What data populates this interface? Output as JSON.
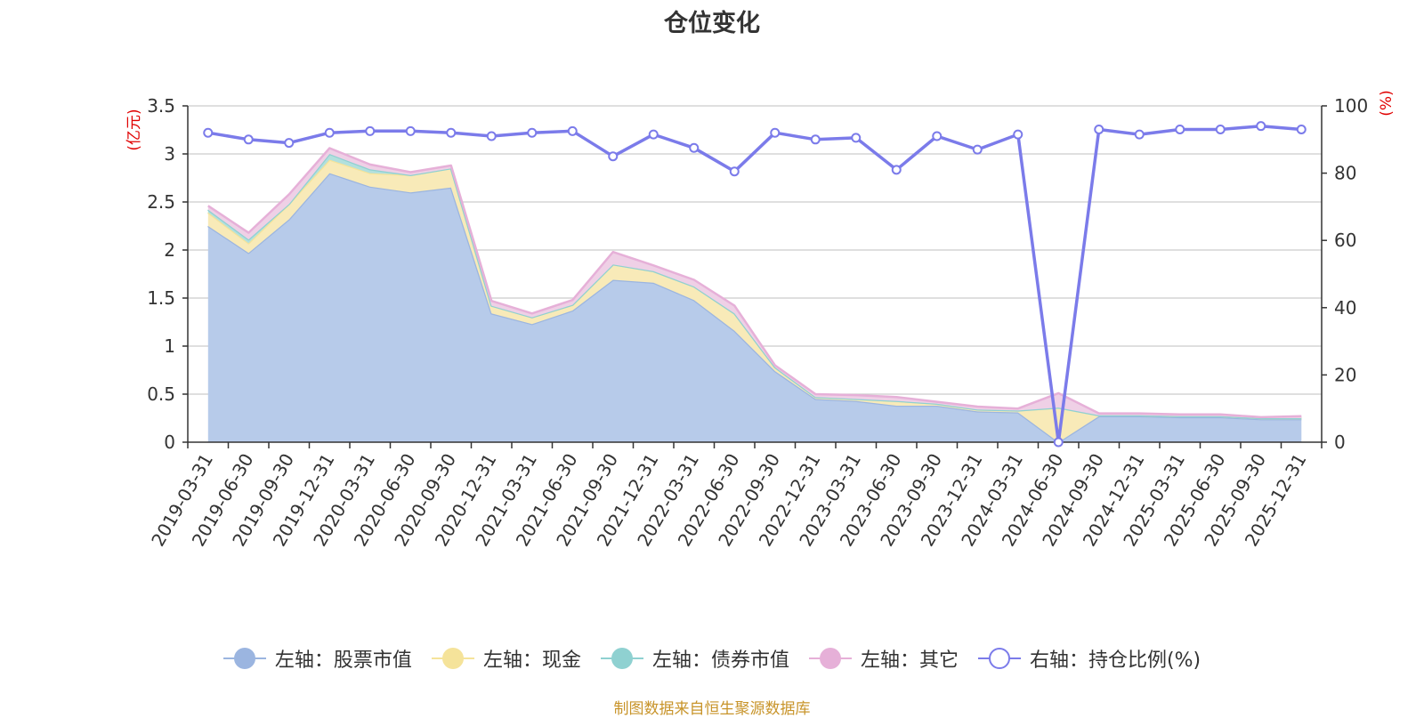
{
  "title": "仓位变化",
  "left_unit": "(亿元)",
  "right_unit": "(%)",
  "source": "制图数据来自恒生聚源数据库",
  "colors": {
    "stock": "#9bb5e0",
    "stock_fill": "#b7cbea",
    "cash": "#f5e39a",
    "cash_fill": "#f8eab8",
    "bond": "#8fd1d1",
    "bond_fill": "#b2e0dd",
    "other": "#e6b0d8",
    "other_fill": "#efd0e6",
    "ratio": "#7b7bea",
    "axis": "#333333",
    "grid": "#cccccc",
    "unit": "#e00000"
  },
  "legend": [
    {
      "key": "stock",
      "label": "左轴：股票市值",
      "icon": "filled-circle"
    },
    {
      "key": "cash",
      "label": "左轴：现金",
      "icon": "filled-circle"
    },
    {
      "key": "bond",
      "label": "左轴：债券市值",
      "icon": "filled-circle"
    },
    {
      "key": "other",
      "label": "左轴：其它",
      "icon": "filled-circle"
    },
    {
      "key": "ratio",
      "label": "右轴：持仓比例(%)",
      "icon": "hollow-circle"
    }
  ],
  "chart_data": {
    "type": "area",
    "categories": [
      "2019-03-31",
      "2019-06-30",
      "2019-09-30",
      "2019-12-31",
      "2020-03-31",
      "2020-06-30",
      "2020-09-30",
      "2020-12-31",
      "2021-03-31",
      "2021-06-30",
      "2021-09-30",
      "2021-12-31",
      "2022-03-31",
      "2022-06-30",
      "2022-09-30",
      "2022-12-31",
      "2023-03-31",
      "2023-06-30",
      "2023-09-30",
      "2023-12-31",
      "2024-03-31",
      "2024-06-30",
      "2024-09-30",
      "2024-12-31",
      "2025-03-31",
      "2025-06-30",
      "2025-09-30",
      "2025-12-31"
    ],
    "left_axis": {
      "min": 0,
      "max": 3.5,
      "ticks": [
        "0",
        "0.5",
        "1",
        "1.5",
        "2",
        "2.5",
        "3",
        "3.5"
      ]
    },
    "right_axis": {
      "min": 0,
      "max": 100,
      "ticks": [
        "0",
        "20",
        "40",
        "60",
        "80",
        "100"
      ]
    },
    "stacked_series": [
      {
        "key": "stock",
        "name": "左轴：股票市值",
        "values": [
          2.25,
          1.97,
          2.32,
          2.8,
          2.66,
          2.6,
          2.65,
          1.34,
          1.23,
          1.37,
          1.69,
          1.66,
          1.48,
          1.16,
          0.74,
          0.45,
          0.43,
          0.38,
          0.38,
          0.32,
          0.31,
          0.0,
          0.27,
          0.27,
          0.26,
          0.26,
          0.24,
          0.24
        ]
      },
      {
        "key": "cash",
        "name": "左轴：现金",
        "values": [
          0.14,
          0.1,
          0.16,
          0.14,
          0.14,
          0.18,
          0.2,
          0.08,
          0.07,
          0.06,
          0.16,
          0.12,
          0.14,
          0.18,
          0.04,
          0.02,
          0.02,
          0.05,
          0.02,
          0.02,
          0.02,
          0.36,
          0.01,
          0.01,
          0.01,
          0.01,
          0.01,
          0.01
        ]
      },
      {
        "key": "bond",
        "name": "左轴：债券市值",
        "values": [
          0.03,
          0.04,
          0.0,
          0.06,
          0.04,
          0.0,
          0.0,
          0.0,
          0.0,
          0.0,
          0.0,
          0.0,
          0.0,
          0.0,
          0.0,
          0.0,
          0.0,
          0.0,
          0.0,
          0.0,
          0.0,
          0.0,
          0.0,
          0.0,
          0.0,
          0.0,
          0.0,
          0.0
        ]
      },
      {
        "key": "other",
        "name": "左轴：其它",
        "values": [
          0.04,
          0.07,
          0.1,
          0.06,
          0.05,
          0.03,
          0.03,
          0.05,
          0.04,
          0.05,
          0.13,
          0.06,
          0.07,
          0.08,
          0.02,
          0.03,
          0.04,
          0.04,
          0.02,
          0.03,
          0.02,
          0.15,
          0.02,
          0.02,
          0.02,
          0.02,
          0.01,
          0.02
        ]
      }
    ],
    "line_series": {
      "key": "ratio",
      "name": "右轴：持仓比例(%)",
      "values": [
        92,
        90,
        89,
        92,
        92.5,
        92.5,
        92,
        91,
        92,
        92.5,
        85,
        91.5,
        87.5,
        80.5,
        92,
        90,
        90.5,
        81,
        91,
        87,
        91.5,
        0,
        93,
        91.5,
        93,
        93,
        94,
        93
      ]
    }
  }
}
